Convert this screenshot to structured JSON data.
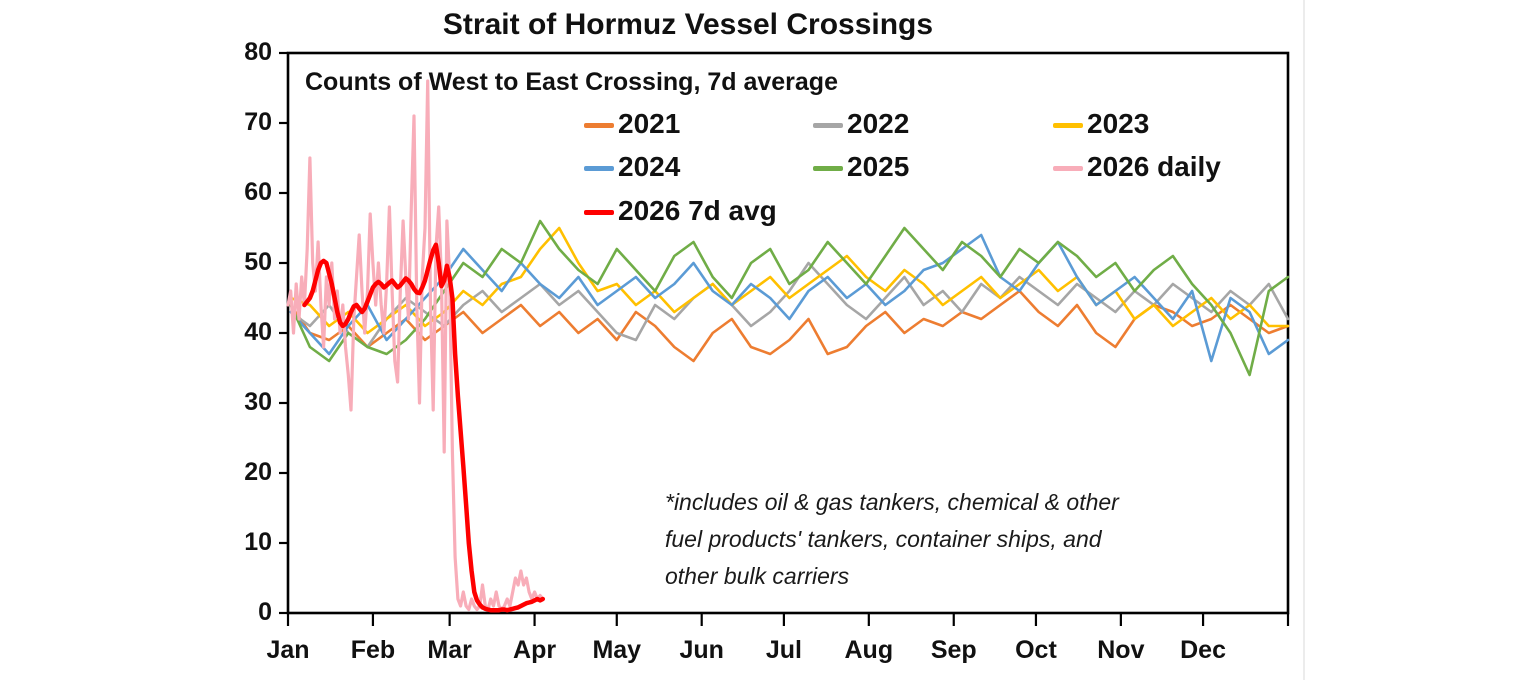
{
  "title": "Strait of Hormuz Vessel Crossings",
  "subtitle": "Counts of West to East Crossing, 7d average",
  "annotation": {
    "lines": [
      "*includes oil & gas tankers, chemical & other",
      "fuel products' tankers, container ships, and",
      "other bulk carriers"
    ]
  },
  "legend": {
    "position": "top-inside",
    "entries": [
      {
        "label": "2021",
        "color": "#ED7D31"
      },
      {
        "label": "2022",
        "color": "#A6A6A6"
      },
      {
        "label": "2023",
        "color": "#FFC000"
      },
      {
        "label": "2024",
        "color": "#5B9BD5"
      },
      {
        "label": "2025",
        "color": "#70AD47"
      },
      {
        "label": "2026 daily",
        "color": "#F8ADB9"
      },
      {
        "label": "2026 7d avg",
        "color": "#FE0000"
      }
    ]
  },
  "chart_data": {
    "type": "line",
    "title": "Strait of Hormuz Vessel Crossings",
    "subtitle": "Counts of West to East Crossing, 7d average",
    "grid": false,
    "legend_position": "top-inside",
    "x_axis": {
      "unit": "day-of-year",
      "range_days": [
        0,
        365
      ],
      "tick_labels": [
        "Jan",
        "Feb",
        "Mar",
        "Apr",
        "May",
        "Jun",
        "Jul",
        "Aug",
        "Sep",
        "Oct",
        "Nov",
        "Dec"
      ],
      "month_start_days": [
        0,
        31,
        59,
        90,
        120,
        151,
        181,
        212,
        243,
        273,
        304,
        334
      ]
    },
    "y_axis": {
      "min": 0,
      "max": 80,
      "tick_step": 10,
      "tick_labels": [
        "0",
        "10",
        "20",
        "30",
        "40",
        "50",
        "60",
        "70",
        "80"
      ]
    },
    "series": [
      {
        "name": "2021",
        "color": "#ED7D31",
        "width": 2.6,
        "day_start": 1,
        "day_step": 7,
        "values": [
          44,
          40,
          39,
          41,
          38,
          40,
          42,
          39,
          41,
          43,
          40,
          42,
          44,
          41,
          43,
          40,
          42,
          39,
          43,
          41,
          38,
          36,
          40,
          42,
          38,
          37,
          39,
          42,
          37,
          38,
          41,
          43,
          40,
          42,
          41,
          43,
          42,
          44,
          46,
          43,
          41,
          44,
          40,
          38,
          42,
          44,
          43,
          41,
          42,
          44,
          42,
          40,
          41
        ]
      },
      {
        "name": "2022",
        "color": "#A6A6A6",
        "width": 2.6,
        "day_start": 1,
        "day_step": 7,
        "values": [
          43,
          41,
          44,
          40,
          38,
          42,
          45,
          43,
          41,
          44,
          46,
          43,
          45,
          47,
          44,
          46,
          43,
          40,
          39,
          44,
          42,
          45,
          47,
          44,
          41,
          43,
          46,
          50,
          47,
          44,
          42,
          45,
          48,
          44,
          46,
          43,
          47,
          45,
          48,
          46,
          44,
          47,
          45,
          43,
          46,
          44,
          47,
          45,
          43,
          46,
          44,
          47,
          42
        ]
      },
      {
        "name": "2023",
        "color": "#FFC000",
        "width": 2.6,
        "day_start": 1,
        "day_step": 7,
        "values": [
          45,
          44,
          41,
          43,
          40,
          42,
          44,
          41,
          43,
          46,
          44,
          47,
          48,
          52,
          55,
          50,
          46,
          47,
          44,
          46,
          43,
          45,
          47,
          44,
          46,
          48,
          45,
          47,
          49,
          51,
          48,
          46,
          49,
          47,
          44,
          46,
          48,
          45,
          47,
          49,
          46,
          48,
          44,
          46,
          42,
          44,
          41,
          43,
          45,
          42,
          44,
          41,
          41
        ]
      },
      {
        "name": "2024",
        "color": "#5B9BD5",
        "width": 2.6,
        "day_start": 1,
        "day_step": 7,
        "values": [
          43,
          40,
          37,
          41,
          44,
          39,
          42,
          45,
          48,
          52,
          49,
          46,
          50,
          47,
          45,
          48,
          44,
          46,
          48,
          45,
          47,
          50,
          46,
          44,
          47,
          45,
          42,
          46,
          48,
          45,
          47,
          44,
          46,
          49,
          50,
          52,
          54,
          48,
          46,
          50,
          53,
          48,
          44,
          46,
          48,
          45,
          42,
          46,
          36,
          45,
          43,
          37,
          39
        ]
      },
      {
        "name": "2025",
        "color": "#70AD47",
        "width": 2.6,
        "day_start": 1,
        "day_step": 7,
        "values": [
          44,
          38,
          36,
          40,
          38,
          37,
          39,
          42,
          46,
          50,
          48,
          52,
          50,
          56,
          52,
          49,
          47,
          52,
          49,
          46,
          51,
          53,
          48,
          45,
          50,
          52,
          47,
          49,
          53,
          50,
          47,
          51,
          55,
          52,
          49,
          53,
          51,
          48,
          52,
          50,
          53,
          51,
          48,
          50,
          46,
          49,
          51,
          47,
          44,
          40,
          34,
          46,
          48
        ]
      },
      {
        "name": "2026 daily",
        "color": "#F8ADB9",
        "width": 3.2,
        "day_start": 0,
        "day_step": 1,
        "values": [
          44,
          46,
          40,
          47,
          42,
          48,
          44,
          52,
          65,
          50,
          46,
          53,
          44,
          38,
          48,
          44,
          50,
          42,
          46,
          40,
          44,
          38,
          34,
          29,
          42,
          48,
          54,
          46,
          40,
          46,
          57,
          50,
          44,
          50,
          44,
          40,
          47,
          58,
          46,
          36,
          33,
          46,
          56,
          48,
          42,
          58,
          71,
          44,
          30,
          48,
          55,
          76,
          44,
          29,
          52,
          58,
          48,
          23,
          56,
          48,
          23,
          8,
          2,
          1,
          3,
          1,
          0.5,
          2,
          1,
          0.5,
          1,
          4,
          1,
          0.5,
          2,
          1,
          3,
          1,
          0.5,
          1,
          2,
          1,
          3,
          5,
          4,
          6,
          4,
          5,
          3,
          2,
          3,
          2,
          2.5,
          2
        ]
      },
      {
        "name": "2026 7d avg",
        "color": "#FE0000",
        "width": 4.5,
        "day_start": 6,
        "day_step": 1,
        "values": [
          44,
          44.5,
          45,
          46,
          47.5,
          49,
          50,
          50.3,
          50,
          48.5,
          47,
          45,
          43,
          41.5,
          41,
          41.3,
          42,
          43,
          43.8,
          44,
          43.5,
          43,
          43.5,
          44.5,
          45.5,
          46.5,
          47,
          47.3,
          47,
          46.5,
          46.8,
          47.2,
          47.5,
          47,
          46.5,
          46.8,
          47.3,
          47.8,
          47.5,
          47,
          46.3,
          45.8,
          45.7,
          46.5,
          47.5,
          49,
          50.5,
          51.8,
          52.6,
          50,
          46.7,
          47.5,
          49.6,
          48,
          45,
          37,
          31,
          26,
          21,
          15.5,
          10,
          6,
          3,
          1.8,
          1.2,
          0.8,
          0.6,
          0.5,
          0.4,
          0.4,
          0.4,
          0.4,
          0.5,
          0.5,
          0.4,
          0.5,
          0.6,
          0.7,
          0.8,
          1,
          1.2,
          1.4,
          1.5,
          1.6,
          1.8,
          2,
          1.8,
          2
        ]
      }
    ]
  }
}
